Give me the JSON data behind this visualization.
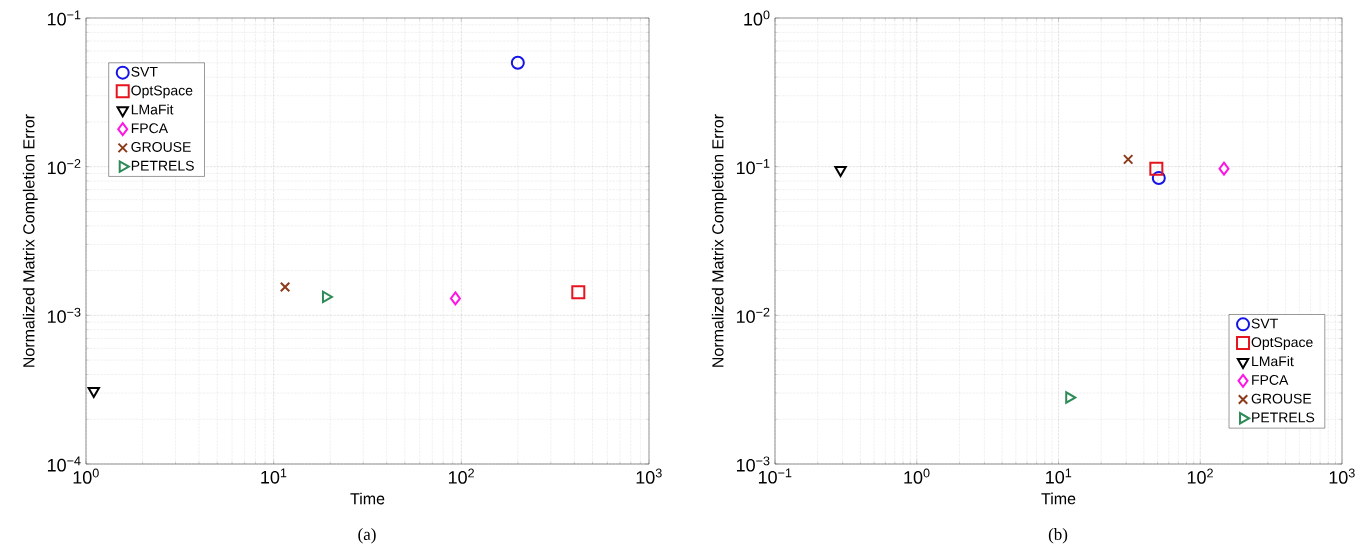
{
  "chart_data": [
    {
      "type": "scatter",
      "xlabel": "Time",
      "ylabel": "Normalized Matrix Completion Error",
      "log": "xy",
      "grid": true,
      "legend": "top left",
      "xlim": [
        1,
        1000
      ],
      "ylim": [
        0.0001,
        0.1
      ],
      "xticks": [
        {
          "value": 1,
          "label": "10$^{0}$"
        },
        {
          "value": 10,
          "label": "10$^{1}$"
        },
        {
          "value": 100,
          "label": "10$^{2}$"
        },
        {
          "value": 1000,
          "label": "10$^{3}$"
        }
      ],
      "yticks": [
        {
          "value": 0.0001,
          "label": "10$^{−4}$"
        },
        {
          "value": 0.001,
          "label": "10$^{−3}$"
        },
        {
          "value": 0.01,
          "label": "10$^{−2}$"
        },
        {
          "value": 0.1,
          "label": "10$^{−1}$"
        }
      ],
      "annotations": [
        "(a)"
      ],
      "series": [
        {
          "name": "SVT",
          "color": "#1414e6",
          "marker": "circle",
          "x": [
            200
          ],
          "values": [
            0.05
          ]
        },
        {
          "name": "OptSpace",
          "color": "#e6141e",
          "marker": "square",
          "x": [
            420
          ],
          "values": [
            0.00143
          ]
        },
        {
          "name": "LMaFit",
          "color": "#000000",
          "marker": "triangle down",
          "x": [
            1.1
          ],
          "values": [
            0.00031
          ]
        },
        {
          "name": "FPCA",
          "color": "#ff14e6",
          "marker": "diamond",
          "x": [
            93
          ],
          "values": [
            0.0013
          ]
        },
        {
          "name": "GROUSE",
          "color": "#8b3a1a",
          "marker": "cross",
          "x": [
            11.5
          ],
          "values": [
            0.00155
          ]
        },
        {
          "name": "PETRELS",
          "color": "#2e8b57",
          "marker": "triangle right",
          "x": [
            19
          ],
          "values": [
            0.00133
          ]
        }
      ]
    },
    {
      "type": "scatter",
      "xlabel": "Time",
      "ylabel": "Normalized Matrix Completion Error",
      "log": "xy",
      "grid": true,
      "legend": "bottom right",
      "xlim": [
        0.1,
        1000
      ],
      "ylim": [
        0.001,
        1
      ],
      "xticks": [
        {
          "value": 0.1,
          "label": "10$^{−1}$"
        },
        {
          "value": 1,
          "label": "10$^{0}$"
        },
        {
          "value": 10,
          "label": "10$^{1}$"
        },
        {
          "value": 100,
          "label": "10$^{2}$"
        },
        {
          "value": 1000,
          "label": "10$^{3}$"
        }
      ],
      "yticks": [
        {
          "value": 0.001,
          "label": "10$^{−3}$"
        },
        {
          "value": 0.01,
          "label": "10$^{−2}$"
        },
        {
          "value": 0.1,
          "label": "10$^{−1}$"
        },
        {
          "value": 1,
          "label": "10$^{0}$"
        }
      ],
      "annotations": [
        "(b)"
      ],
      "series": [
        {
          "name": "SVT",
          "color": "#1414e6",
          "marker": "circle",
          "x": [
            51
          ],
          "values": [
            0.084
          ]
        },
        {
          "name": "OptSpace",
          "color": "#e6141e",
          "marker": "square",
          "x": [
            49
          ],
          "values": [
            0.097
          ]
        },
        {
          "name": "LMaFit",
          "color": "#000000",
          "marker": "triangle down",
          "x": [
            0.29
          ],
          "values": [
            0.095
          ]
        },
        {
          "name": "FPCA",
          "color": "#ff14e6",
          "marker": "diamond",
          "x": [
            147
          ],
          "values": [
            0.097
          ]
        },
        {
          "name": "GROUSE",
          "color": "#8b3a1a",
          "marker": "cross",
          "x": [
            31
          ],
          "values": [
            0.112
          ]
        },
        {
          "name": "PETRELS",
          "color": "#2e8b57",
          "marker": "triangle right",
          "x": [
            11.9
          ],
          "values": [
            0.0028
          ]
        }
      ]
    }
  ]
}
